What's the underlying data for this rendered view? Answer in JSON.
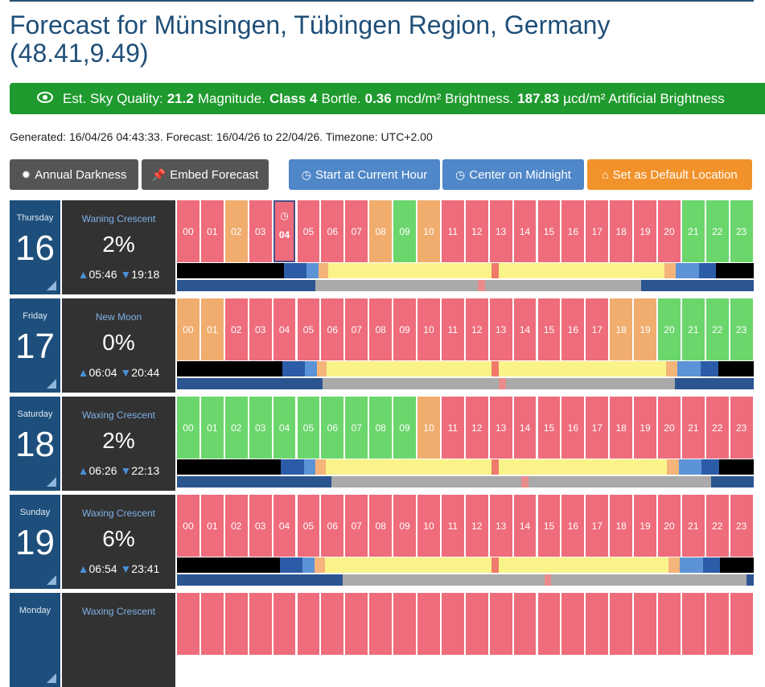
{
  "page": {
    "title_line1": "Forecast for Münsingen, Tübingen Region, Germany",
    "title_line2": "(48.41,9.49)"
  },
  "sky": {
    "icon": "eye-icon",
    "prefix": "Est. Sky Quality:",
    "mag_value": "21.2",
    "mag_label": "Magnitude.",
    "class_value": "Class 4",
    "class_label": "Bortle.",
    "bright_value": "0.36",
    "bright_label": "mcd/m² Brightness.",
    "art_value": "187.83",
    "art_label": "µcd/m² Artificial Brightness"
  },
  "generated": "Generated: 16/04/26 04:43:33. Forecast: 16/04/26 to 22/04/26. Timezone: UTC+2.00",
  "buttons": {
    "annual_darkness": "Annual Darkness",
    "embed_forecast": "Embed Forecast",
    "start_current_hour": "Start at Current Hour",
    "center_midnight": "Center on Midnight",
    "set_default": "Set as Default Location"
  },
  "colors": {
    "red": "#ee6c7b",
    "orange": "#f0ad6e",
    "green": "#6ad66b",
    "night": "#000000",
    "twilight_dark": "#2c5ca8",
    "twilight_light": "#5b93d6",
    "dawn": "#f4b47a",
    "day": "#faf38a",
    "noon": "#f07a6a",
    "moon_up": "#aaaaaa",
    "moon_down": "#2a5590"
  },
  "hour_labels": [
    "00",
    "01",
    "02",
    "03",
    "04",
    "05",
    "06",
    "07",
    "08",
    "09",
    "10",
    "11",
    "12",
    "13",
    "14",
    "15",
    "16",
    "17",
    "18",
    "19",
    "20",
    "21",
    "22",
    "23"
  ],
  "days": [
    {
      "weekday": "Thursday",
      "date": "16",
      "phase": "Waning Crescent",
      "illum": "2%",
      "moonrise": "05:46",
      "moonset": "19:18",
      "hours": [
        "r",
        "r",
        "o",
        "r",
        "r",
        "r",
        "r",
        "r",
        "o",
        "g",
        "o",
        "r",
        "r",
        "r",
        "r",
        "r",
        "r",
        "r",
        "r",
        "r",
        "r",
        "g",
        "g",
        "g"
      ],
      "current_hour": 4
    },
    {
      "weekday": "Friday",
      "date": "17",
      "phase": "New Moon",
      "illum": "0%",
      "moonrise": "06:04",
      "moonset": "20:44",
      "hours": [
        "o",
        "o",
        "r",
        "r",
        "r",
        "r",
        "r",
        "r",
        "r",
        "r",
        "r",
        "r",
        "r",
        "r",
        "r",
        "r",
        "r",
        "r",
        "o",
        "o",
        "g",
        "g",
        "g",
        "g"
      ]
    },
    {
      "weekday": "Saturday",
      "date": "18",
      "phase": "Waxing Crescent",
      "illum": "2%",
      "moonrise": "06:26",
      "moonset": "22:13",
      "hours": [
        "g",
        "g",
        "g",
        "g",
        "g",
        "g",
        "g",
        "g",
        "g",
        "g",
        "o",
        "r",
        "r",
        "r",
        "r",
        "r",
        "r",
        "r",
        "r",
        "r",
        "r",
        "r",
        "r",
        "r"
      ]
    },
    {
      "weekday": "Sunday",
      "date": "19",
      "phase": "Waxing Crescent",
      "illum": "6%",
      "moonrise": "06:54",
      "moonset": "23:41",
      "hours": [
        "r",
        "r",
        "r",
        "r",
        "r",
        "r",
        "r",
        "r",
        "r",
        "r",
        "r",
        "r",
        "r",
        "r",
        "r",
        "r",
        "r",
        "r",
        "r",
        "r",
        "r",
        "r",
        "r",
        "r"
      ]
    },
    {
      "weekday": "Monday",
      "date": "",
      "phase": "Waxing Crescent",
      "illum": "",
      "moonrise": "",
      "moonset": "",
      "hours": [
        "r",
        "r",
        "r",
        "r",
        "r",
        "r",
        "r",
        "r",
        "r",
        "r",
        "r",
        "r",
        "r",
        "r",
        "r",
        "r",
        "r",
        "r",
        "r",
        "r",
        "r",
        "r",
        "r",
        "r"
      ]
    }
  ]
}
